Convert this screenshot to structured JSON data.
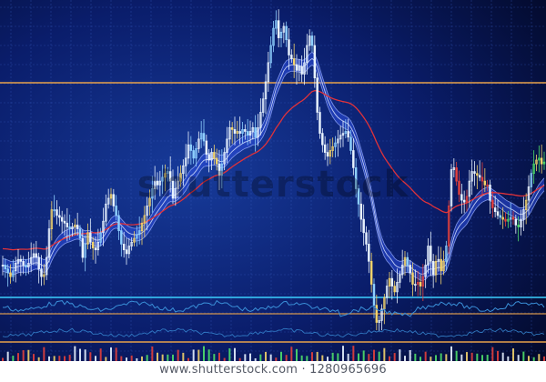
{
  "watermark": {
    "center": "shutterstock",
    "footer": "www.shutterstock.com · 1280965696"
  },
  "colors": {
    "background": "#0a1d6b",
    "background_edge": "#030a2c",
    "grid": "#3a5fc4",
    "candle_up": "#e8f3ff",
    "candle_alt": "#8fd0ff",
    "candle_gold": "#f2d36b",
    "candle_red": "#e3403c",
    "candle_green": "#4fe06a",
    "band": "#2d4fe0",
    "band_edge": "#9bb0ff",
    "ma_red": "#e0323a",
    "ma_white": "#d7e2ff",
    "orange_line": "#e7a14a",
    "cyan_line": "#3dd0ff",
    "indicator_line": "#3a8fd8"
  },
  "chart_data": {
    "type": "candlestick",
    "close": [
      60,
      58,
      56,
      54,
      57,
      61,
      63,
      62,
      60,
      59,
      61,
      64,
      66,
      64,
      58,
      54,
      55,
      64,
      79,
      89,
      89,
      86,
      85,
      83,
      82,
      80,
      79,
      80,
      81,
      79,
      74,
      64,
      71,
      77,
      72,
      69,
      68,
      72,
      77,
      83,
      92,
      95,
      97,
      91,
      86,
      78,
      71,
      68,
      66,
      70,
      72,
      74,
      76,
      78,
      82,
      86,
      91,
      95,
      100,
      104,
      102,
      104,
      106,
      108,
      109,
      104,
      95,
      100,
      104,
      108,
      112,
      116,
      123,
      120,
      116,
      121,
      126,
      129,
      125,
      118,
      115,
      119,
      116,
      113,
      107,
      113,
      119,
      126,
      132,
      131,
      129,
      130,
      129,
      131,
      130,
      128,
      130,
      132,
      127,
      132,
      140,
      147,
      156,
      166,
      175,
      184,
      188,
      179,
      182,
      185,
      178,
      170,
      168,
      165,
      162,
      164,
      160,
      166,
      175,
      180,
      175,
      158,
      140,
      129,
      123,
      119,
      117,
      120,
      122,
      124,
      126,
      128,
      129,
      130,
      127,
      120,
      111,
      100,
      92,
      84,
      77,
      71,
      62,
      50,
      39,
      30,
      31,
      37,
      43,
      49,
      53,
      49,
      46,
      51,
      55,
      60,
      64,
      60,
      56,
      50,
      50,
      51,
      49,
      54,
      60,
      70,
      62,
      55,
      62,
      63,
      57,
      62,
      70,
      91,
      110,
      111,
      104,
      97,
      94,
      93,
      96,
      104,
      109,
      108,
      107,
      106,
      104,
      102,
      102,
      94,
      90,
      88,
      86,
      85,
      84,
      83,
      84,
      85,
      84,
      81,
      80,
      84,
      89,
      94,
      101,
      108,
      113,
      115,
      116,
      113,
      114
    ]
  }
}
